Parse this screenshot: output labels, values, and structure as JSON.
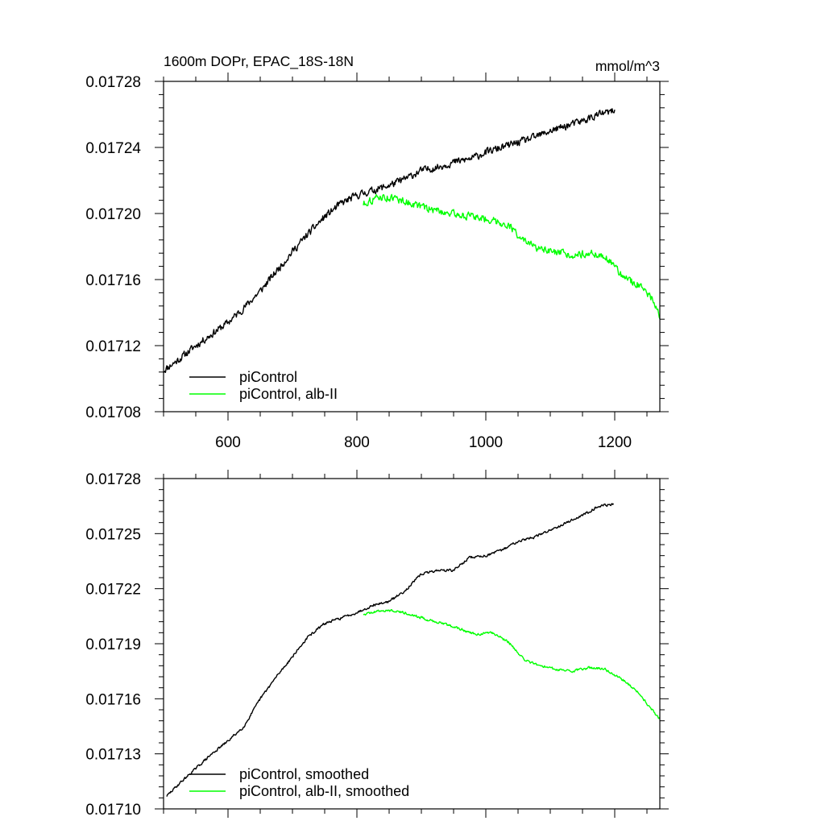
{
  "chart_data": [
    {
      "type": "line",
      "title": "1600m DOPr, EPAC_18S-18N",
      "units": "mmol/m^3",
      "xlabel": "",
      "ylabel": "",
      "xlim": [
        500,
        1270
      ],
      "ylim": [
        0.01708,
        0.01728
      ],
      "x_ticks": [
        600,
        800,
        1000,
        1200
      ],
      "y_ticks": [
        0.01708,
        0.01712,
        0.01716,
        0.0172,
        0.01724,
        0.01728
      ],
      "y_tick_labels": [
        "0.01708",
        "0.01712",
        "0.01716",
        "0.01720",
        "0.01724",
        "0.01728"
      ],
      "legend_position": "bottom-left",
      "series": [
        {
          "name": "piControl",
          "color": "#000000",
          "noise": 2e-06,
          "x": [
            500,
            525,
            550,
            575,
            600,
            625,
            650,
            675,
            700,
            725,
            750,
            775,
            800,
            825,
            850,
            875,
            900,
            925,
            950,
            975,
            1000,
            1025,
            1050,
            1075,
            1100,
            1125,
            1150,
            1175,
            1200
          ],
          "values": [
            0.017105,
            0.017112,
            0.01712,
            0.017127,
            0.017134,
            0.017143,
            0.017153,
            0.017165,
            0.017177,
            0.017188,
            0.017198,
            0.017206,
            0.017211,
            0.017214,
            0.017217,
            0.017221,
            0.017226,
            0.017228,
            0.017231,
            0.017233,
            0.017237,
            0.01724,
            0.017243,
            0.017246,
            0.01725,
            0.017253,
            0.017256,
            0.01726,
            0.017262
          ]
        },
        {
          "name": "piControl, alb-II",
          "color": "#00ff00",
          "noise": 2e-06,
          "x": [
            810,
            835,
            860,
            885,
            910,
            935,
            960,
            985,
            1010,
            1035,
            1060,
            1085,
            1110,
            1135,
            1160,
            1185,
            1210,
            1235,
            1260,
            1270
          ],
          "values": [
            0.017206,
            0.01721,
            0.017209,
            0.017206,
            0.017203,
            0.017201,
            0.017199,
            0.017198,
            0.017196,
            0.017193,
            0.017183,
            0.017178,
            0.017176,
            0.017175,
            0.017176,
            0.017174,
            0.017163,
            0.017157,
            0.017148,
            0.017138
          ]
        }
      ]
    },
    {
      "type": "line",
      "title": "",
      "xlabel": "",
      "ylabel": "",
      "xlim": [
        500,
        1270
      ],
      "ylim": [
        0.0171,
        0.01728
      ],
      "x_ticks": [
        600,
        800,
        1000,
        1200
      ],
      "x_tick_labels_shown": false,
      "y_ticks": [
        0.0171,
        0.01713,
        0.01716,
        0.01719,
        0.01722,
        0.01725,
        0.01728
      ],
      "y_tick_labels": [
        "0.01710",
        "0.01713",
        "0.01716",
        "0.01719",
        "0.01722",
        "0.01725",
        "0.01728"
      ],
      "legend_position": "bottom-left",
      "series": [
        {
          "name": "piControl, smoothed",
          "color": "#000000",
          "noise": 6e-07,
          "x": [
            505,
            525,
            550,
            575,
            600,
            625,
            650,
            675,
            700,
            725,
            750,
            775,
            800,
            825,
            850,
            875,
            900,
            925,
            950,
            975,
            1000,
            1025,
            1050,
            1075,
            1100,
            1125,
            1150,
            1175,
            1198
          ],
          "values": [
            0.017107,
            0.017114,
            0.017122,
            0.01713,
            0.017137,
            0.017145,
            0.01716,
            0.017172,
            0.017183,
            0.017194,
            0.017201,
            0.017204,
            0.017207,
            0.017211,
            0.017213,
            0.017219,
            0.017228,
            0.01723,
            0.01723,
            0.017237,
            0.017238,
            0.017241,
            0.017246,
            0.017248,
            0.017252,
            0.017256,
            0.01726,
            0.017265,
            0.017266
          ]
        },
        {
          "name": "piControl, alb-II, smoothed",
          "color": "#00ff00",
          "noise": 6e-07,
          "x": [
            810,
            835,
            860,
            885,
            910,
            935,
            960,
            985,
            1010,
            1035,
            1060,
            1085,
            1110,
            1135,
            1160,
            1185,
            1210,
            1235,
            1260,
            1270
          ],
          "values": [
            0.017206,
            0.017208,
            0.017208,
            0.017206,
            0.017203,
            0.017201,
            0.017198,
            0.017195,
            0.017196,
            0.017191,
            0.017181,
            0.017178,
            0.017176,
            0.017175,
            0.017177,
            0.017176,
            0.017171,
            0.017164,
            0.017153,
            0.017149
          ]
        }
      ]
    }
  ]
}
